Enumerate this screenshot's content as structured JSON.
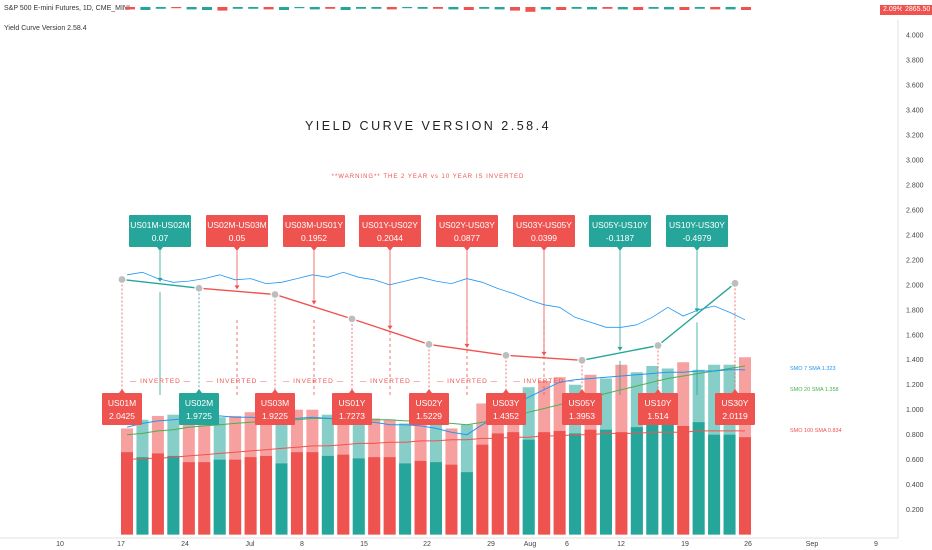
{
  "header": {
    "symbol_line": "S&P 500 E-mini Futures, 1D, CME_MINI",
    "indicator_line": "Yield Curve Version 2.58.4",
    "change_pct": "2.09%",
    "price": "2865.50"
  },
  "chart_data": {
    "type": "line",
    "title": "YIELD CURVE VERSION 2.58.4",
    "warning": "**WARNING**   THE 2 YEAR vs 10 YEAR IS INVERTED",
    "ylim": [
      0,
      4.1
    ],
    "y_ticks": [
      "0.200",
      "0.400",
      "0.600",
      "0.800",
      "1.000",
      "1.200",
      "1.400",
      "1.600",
      "1.800",
      "2.000",
      "2.200",
      "2.400",
      "2.600",
      "2.800",
      "3.000",
      "3.200",
      "3.400",
      "3.600",
      "3.800",
      "4.000"
    ],
    "x_ticks": [
      "10",
      "17",
      "24",
      "Jul",
      "8",
      "15",
      "22",
      "29",
      "Aug",
      "6",
      "12",
      "19",
      "26",
      "Sep",
      "9"
    ],
    "curve": {
      "tenors": [
        "US01M",
        "US02M",
        "US03M",
        "US01Y",
        "US02Y",
        "US03Y",
        "US05Y",
        "US10Y",
        "US30Y"
      ],
      "values": [
        2.0425,
        1.9725,
        1.9225,
        1.7273,
        1.5229,
        1.4352,
        1.3953,
        1.514,
        2.0119
      ],
      "value_labels": [
        "2.0425",
        "1.9725",
        "1.9225",
        "1.7273",
        "1.5229",
        "1.4352",
        "1.3953",
        "1.514",
        "2.0119"
      ],
      "colors": [
        "#ef5350",
        "#26a69a",
        "#ef5350",
        "#ef5350",
        "#ef5350",
        "#ef5350",
        "#ef5350",
        "#ef5350",
        "#ef5350"
      ]
    },
    "spreads": [
      {
        "name": "US01M-US02M",
        "value": "0.07",
        "color": "#26a69a"
      },
      {
        "name": "US02M-US03M",
        "value": "0.05",
        "color": "#ef5350"
      },
      {
        "name": "US03M-US01Y",
        "value": "0.1952",
        "color": "#ef5350"
      },
      {
        "name": "US01Y-US02Y",
        "value": "0.2044",
        "color": "#ef5350"
      },
      {
        "name": "US02Y-US03Y",
        "value": "0.0877",
        "color": "#ef5350"
      },
      {
        "name": "US03Y-US05Y",
        "value": "0.0399",
        "color": "#ef5350"
      },
      {
        "name": "US05Y-US10Y",
        "value": "-0.1187",
        "color": "#26a69a"
      },
      {
        "name": "US10Y-US30Y",
        "value": "-0.4979",
        "color": "#26a69a"
      }
    ],
    "inverted_label": "— INVERTED —",
    "inverted_count": 6,
    "ma_labels": [
      {
        "text": "SMO 7 SMA 1.323",
        "color": "#2196f3"
      },
      {
        "text": "SMO 20 SMA 1.358",
        "color": "#4caf50"
      },
      {
        "text": "SMO 100 SMA 0.834",
        "color": "#ef5350"
      }
    ],
    "histogram": {
      "front": [
        0.66,
        0.62,
        0.65,
        0.63,
        0.58,
        0.58,
        0.6,
        0.6,
        0.62,
        0.63,
        0.57,
        0.66,
        0.66,
        0.63,
        0.64,
        0.61,
        0.62,
        0.62,
        0.57,
        0.59,
        0.58,
        0.56,
        0.5,
        0.72,
        0.81,
        0.82,
        0.76,
        0.82,
        0.83,
        0.81,
        0.84,
        0.84,
        0.82,
        0.86,
        0.9,
        0.91,
        0.87,
        0.9,
        0.8,
        0.8,
        0.78
      ],
      "front_colors": [
        "#ef5350",
        "#26a69a",
        "#ef5350",
        "#26a69a",
        "#ef5350",
        "#ef5350",
        "#26a69a",
        "#ef5350",
        "#ef5350",
        "#ef5350",
        "#26a69a",
        "#ef5350",
        "#ef5350",
        "#26a69a",
        "#ef5350",
        "#26a69a",
        "#ef5350",
        "#ef5350",
        "#26a69a",
        "#ef5350",
        "#26a69a",
        "#ef5350",
        "#26a69a",
        "#ef5350",
        "#ef5350",
        "#ef5350",
        "#26a69a",
        "#ef5350",
        "#ef5350",
        "#26a69a",
        "#ef5350",
        "#26a69a",
        "#ef5350",
        "#26a69a",
        "#26a69a",
        "#26a69a",
        "#ef5350",
        "#26a69a",
        "#26a69a",
        "#26a69a",
        "#ef5350"
      ],
      "back": [
        0.85,
        0.92,
        0.95,
        0.96,
        0.98,
        0.97,
        0.94,
        0.95,
        0.98,
        0.98,
        0.92,
        1.0,
        1.0,
        0.96,
        0.96,
        0.93,
        0.93,
        0.92,
        0.89,
        0.9,
        0.88,
        0.85,
        0.88,
        1.05,
        1.08,
        1.12,
        1.18,
        1.23,
        1.26,
        1.2,
        1.28,
        1.25,
        1.36,
        1.3,
        1.35,
        1.33,
        1.38,
        1.32,
        1.36,
        1.36,
        1.42
      ],
      "back_colors": [
        "#ef5350",
        "#26a69a",
        "#ef5350",
        "#26a69a",
        "#ef5350",
        "#ef5350",
        "#26a69a",
        "#ef5350",
        "#ef5350",
        "#ef5350",
        "#26a69a",
        "#ef5350",
        "#ef5350",
        "#26a69a",
        "#ef5350",
        "#26a69a",
        "#ef5350",
        "#ef5350",
        "#26a69a",
        "#ef5350",
        "#26a69a",
        "#ef5350",
        "#26a69a",
        "#ef5350",
        "#ef5350",
        "#ef5350",
        "#26a69a",
        "#ef5350",
        "#ef5350",
        "#26a69a",
        "#ef5350",
        "#26a69a",
        "#ef5350",
        "#26a69a",
        "#26a69a",
        "#26a69a",
        "#ef5350",
        "#26a69a",
        "#26a69a",
        "#26a69a",
        "#ef5350"
      ]
    },
    "bg_line": [
      2.08,
      2.1,
      2.05,
      2.02,
      2.03,
      2.05,
      2.08,
      2.04,
      2.05,
      2.01,
      2.02,
      2.05,
      2.08,
      2.06,
      2.1,
      2.06,
      2.04,
      2.0,
      2.03,
      2.06,
      2.03,
      2.01,
      2.05,
      2.02,
      1.97,
      1.93,
      1.88,
      1.84,
      1.82,
      1.74,
      1.7,
      1.66,
      1.66,
      1.68,
      1.74,
      1.82,
      1.75,
      1.8,
      1.83,
      1.78,
      1.72
    ],
    "sma7": [
      0.86,
      0.89,
      0.91,
      0.92,
      0.93,
      0.94,
      0.95,
      0.94,
      0.94,
      0.93,
      0.92,
      0.93,
      0.94,
      0.93,
      0.92,
      0.9,
      0.9,
      0.88,
      0.88,
      0.87,
      0.85,
      0.82,
      0.8,
      0.88,
      0.95,
      1.04,
      1.1,
      1.16,
      1.22,
      1.24,
      1.25,
      1.26,
      1.27,
      1.28,
      1.29,
      1.3,
      1.3,
      1.31,
      1.31,
      1.32,
      1.32
    ],
    "sma20": [
      0.8,
      0.81,
      0.83,
      0.84,
      0.86,
      0.87,
      0.88,
      0.89,
      0.9,
      0.91,
      0.91,
      0.92,
      0.93,
      0.93,
      0.93,
      0.93,
      0.92,
      0.92,
      0.91,
      0.91,
      0.9,
      0.89,
      0.88,
      0.9,
      0.92,
      0.95,
      0.98,
      1.01,
      1.04,
      1.07,
      1.1,
      1.13,
      1.16,
      1.19,
      1.22,
      1.25,
      1.27,
      1.29,
      1.31,
      1.33,
      1.35
    ],
    "sma100": [
      0.6,
      0.61,
      0.61,
      0.62,
      0.63,
      0.64,
      0.65,
      0.66,
      0.67,
      0.68,
      0.69,
      0.7,
      0.71,
      0.71,
      0.72,
      0.73,
      0.73,
      0.74,
      0.74,
      0.75,
      0.75,
      0.76,
      0.76,
      0.77,
      0.77,
      0.78,
      0.78,
      0.79,
      0.79,
      0.8,
      0.8,
      0.81,
      0.81,
      0.81,
      0.82,
      0.82,
      0.82,
      0.83,
      0.83,
      0.83,
      0.83
    ],
    "mini_candles_top": [
      {
        "c": "#ef5350",
        "v": 0.4
      },
      {
        "c": "#26a69a",
        "v": 0.5
      },
      {
        "c": "#26a69a",
        "v": 0.3
      },
      {
        "c": "#ef5350",
        "v": 0.2
      },
      {
        "c": "#26a69a",
        "v": 0.4
      },
      {
        "c": "#26a69a",
        "v": 0.5
      },
      {
        "c": "#ef5350",
        "v": 0.6
      },
      {
        "c": "#26a69a",
        "v": 0.3
      },
      {
        "c": "#26a69a",
        "v": 0.3
      },
      {
        "c": "#ef5350",
        "v": 0.4
      },
      {
        "c": "#26a69a",
        "v": 0.5
      },
      {
        "c": "#26a69a",
        "v": 0.2
      },
      {
        "c": "#26a69a",
        "v": 0.4
      },
      {
        "c": "#ef5350",
        "v": 0.3
      },
      {
        "c": "#26a69a",
        "v": 0.5
      },
      {
        "c": "#26a69a",
        "v": 0.3
      },
      {
        "c": "#26a69a",
        "v": 0.3
      },
      {
        "c": "#ef5350",
        "v": 0.4
      },
      {
        "c": "#26a69a",
        "v": 0.2
      },
      {
        "c": "#26a69a",
        "v": 0.3
      },
      {
        "c": "#ef5350",
        "v": 0.3
      },
      {
        "c": "#26a69a",
        "v": 0.4
      },
      {
        "c": "#ef5350",
        "v": 0.5
      },
      {
        "c": "#26a69a",
        "v": 0.3
      },
      {
        "c": "#26a69a",
        "v": 0.4
      },
      {
        "c": "#ef5350",
        "v": 0.6
      },
      {
        "c": "#ef5350",
        "v": 0.8
      },
      {
        "c": "#26a69a",
        "v": 0.4
      },
      {
        "c": "#ef5350",
        "v": 0.5
      },
      {
        "c": "#26a69a",
        "v": 0.3
      },
      {
        "c": "#26a69a",
        "v": 0.4
      },
      {
        "c": "#ef5350",
        "v": 0.3
      },
      {
        "c": "#26a69a",
        "v": 0.4
      },
      {
        "c": "#ef5350",
        "v": 0.5
      },
      {
        "c": "#26a69a",
        "v": 0.3
      },
      {
        "c": "#26a69a",
        "v": 0.4
      },
      {
        "c": "#ef5350",
        "v": 0.5
      },
      {
        "c": "#26a69a",
        "v": 0.3
      },
      {
        "c": "#ef5350",
        "v": 0.4
      },
      {
        "c": "#26a69a",
        "v": 0.4
      },
      {
        "c": "#ef5350",
        "v": 0.5
      }
    ],
    "colors": {
      "up": "#26a69a",
      "down": "#ef5350",
      "title": "#222222",
      "warning": "#ef5350"
    }
  }
}
